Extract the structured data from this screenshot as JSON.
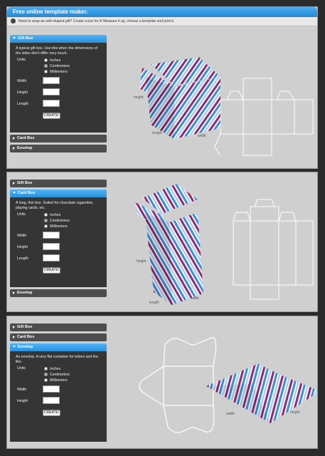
{
  "header": {
    "title": "Free online template maker.",
    "info": "Need to wrap an odd-shaped gift? Create a box for it! Measure it up, choose a template and print it."
  },
  "accordion": {
    "gift_box": "Gift Box",
    "card_box": "Card Box",
    "envelop": "Envelop"
  },
  "form": {
    "units_label": "Units",
    "units": [
      "Inches",
      "Centimeters",
      "Millimeters"
    ],
    "selected_unit": "Centimeters",
    "width_label": "Width",
    "height_label": "Height",
    "length_label": "Length",
    "create_label": "CREATE!"
  },
  "descriptions": {
    "gift_box": "A typical gift box. Use this when the dimensions of the sides don't differ very much.",
    "card_box": "A long, thin box. Suited for chocolate cigarettes, playing cards, etc.",
    "envelop": "An envelop. A very flat container for letters and the like."
  },
  "dimension_labels": {
    "height": "height",
    "length": "length",
    "width": "width"
  },
  "colors": {
    "accent": "#2a93e0",
    "panel": "#353535",
    "stripe_blue": "#3b8fd6",
    "stripe_purple": "#8c2a73",
    "stripe_light": "#9fc9ee"
  }
}
